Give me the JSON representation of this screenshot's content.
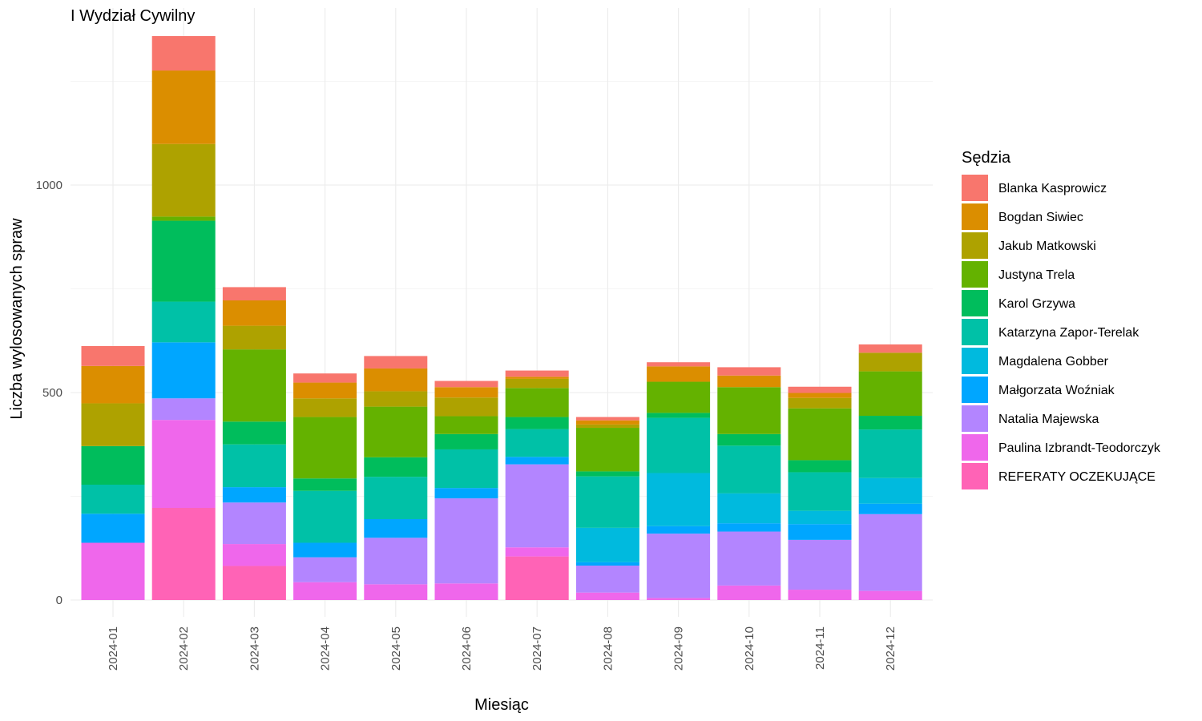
{
  "chart_data": {
    "type": "bar",
    "stacked": true,
    "title": "I Wydział Cywilny",
    "xlabel": "Miesiąc",
    "ylabel": "Liczba wylosowanych spraw",
    "ylim": [
      0,
      1400
    ],
    "yticks": [
      0,
      500,
      1000
    ],
    "grid": true,
    "legend_title": "Sędzia",
    "legend_position": "right",
    "categories": [
      "2024-01",
      "2024-02",
      "2024-03",
      "2024-04",
      "2024-05",
      "2024-06",
      "2024-07",
      "2024-08",
      "2024-09",
      "2024-10",
      "2024-11",
      "2024-12"
    ],
    "series": [
      {
        "name": "Blanka Kasprowicz",
        "color": "#F8766D",
        "values": [
          48,
          83,
          32,
          22,
          30,
          15,
          15,
          8,
          10,
          20,
          15,
          20
        ]
      },
      {
        "name": "Bogdan Siwiec",
        "color": "#DB8E00",
        "values": [
          90,
          177,
          61,
          38,
          55,
          25,
          5,
          10,
          37,
          28,
          12,
          0
        ]
      },
      {
        "name": "Jakub Matkowski",
        "color": "#AEA200",
        "values": [
          103,
          175,
          57,
          45,
          37,
          45,
          22,
          8,
          0,
          0,
          25,
          45
        ]
      },
      {
        "name": "Justyna Trela",
        "color": "#64B200",
        "values": [
          0,
          10,
          174,
          148,
          122,
          43,
          70,
          105,
          75,
          113,
          125,
          107
        ]
      },
      {
        "name": "Karol Grzywa",
        "color": "#00BD5C",
        "values": [
          93,
          195,
          55,
          30,
          47,
          37,
          29,
          12,
          12,
          28,
          29,
          33
        ]
      },
      {
        "name": "Katarzyna Zapor-Terelak",
        "color": "#00C1A7",
        "values": [
          70,
          98,
          103,
          125,
          102,
          93,
          67,
          124,
          133,
          115,
          93,
          117
        ]
      },
      {
        "name": "Magdalena Gobber",
        "color": "#00BADE",
        "values": [
          0,
          0,
          0,
          0,
          0,
          0,
          0,
          83,
          128,
          72,
          32,
          62
        ]
      },
      {
        "name": "Małgorzata Woźniak",
        "color": "#00A6FF",
        "values": [
          70,
          135,
          37,
          35,
          45,
          25,
          18,
          8,
          18,
          20,
          38,
          25
        ]
      },
      {
        "name": "Natalia Majewska",
        "color": "#B385FF",
        "values": [
          0,
          52,
          100,
          60,
          112,
          205,
          200,
          65,
          155,
          130,
          120,
          185
        ]
      },
      {
        "name": "Paulina Izbrandt-Teodorczyk",
        "color": "#EF67EB",
        "values": [
          138,
          212,
          53,
          43,
          38,
          40,
          22,
          18,
          5,
          35,
          25,
          22
        ]
      },
      {
        "name": "REFERATY OCZEKUJĄCE",
        "color": "#FF63B6",
        "values": [
          0,
          222,
          82,
          0,
          0,
          0,
          105,
          0,
          0,
          0,
          0,
          0
        ]
      }
    ]
  }
}
